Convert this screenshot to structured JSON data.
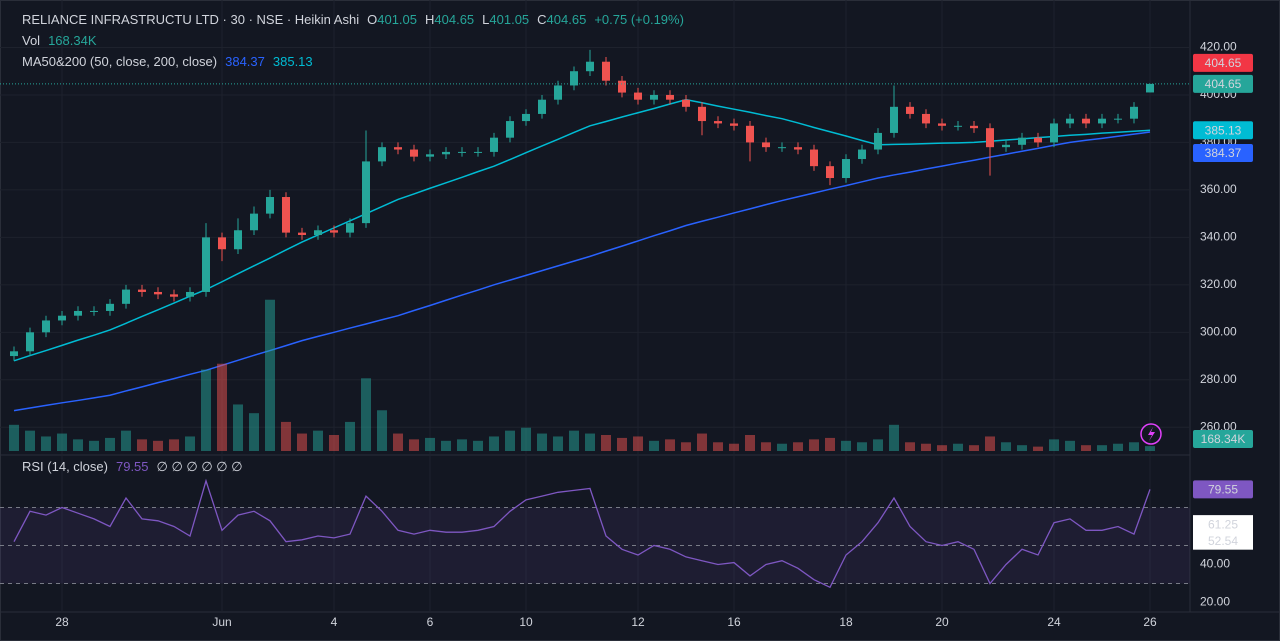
{
  "chart_data": [
    {
      "type": "candlestick",
      "title": "RELIANCE INFRASTRUCTU LTD · 30 · NSE · Heikin Ashi",
      "ohlc_letters": [
        "O",
        "H",
        "L",
        "C"
      ],
      "change": "+0.75 (+0.19%)",
      "indicator": "MA50&200 (50, close, 200, close)",
      "categories": [
        null,
        null,
        null,
        "28",
        null,
        null,
        null,
        null,
        null,
        null,
        null,
        null,
        null,
        "Jun",
        null,
        null,
        null,
        null,
        null,
        null,
        "4",
        null,
        null,
        null,
        null,
        null,
        "6",
        null,
        null,
        null,
        null,
        null,
        "10",
        null,
        null,
        null,
        null,
        null,
        null,
        "12",
        null,
        null,
        null,
        null,
        null,
        "16",
        null,
        null,
        null,
        null,
        null,
        null,
        "18",
        null,
        null,
        null,
        null,
        null,
        "20",
        null,
        null,
        null,
        null,
        null,
        null,
        "24",
        null,
        null,
        null,
        null,
        null,
        "26"
      ],
      "open": [
        290,
        292,
        300,
        305,
        307,
        309,
        309,
        312,
        318,
        317,
        316,
        315,
        317,
        340,
        335,
        343,
        350,
        357,
        342,
        341,
        343,
        342,
        346,
        372,
        378,
        377,
        374,
        375,
        376,
        376,
        376,
        382,
        389,
        392,
        398,
        404,
        410,
        414,
        406,
        401,
        398,
        400,
        398,
        395,
        389,
        388,
        387,
        380,
        378,
        378,
        377,
        370,
        365,
        373,
        377,
        384,
        395,
        392,
        388,
        387,
        387,
        386,
        378,
        379,
        382,
        380,
        388,
        390,
        388,
        390,
        390,
        401.05
      ],
      "high": [
        294,
        302,
        307,
        309,
        311,
        311,
        314,
        320,
        320,
        319,
        318,
        319,
        346,
        342,
        348,
        353,
        360,
        359,
        344,
        345,
        345,
        348,
        385,
        380,
        380,
        379,
        377,
        378,
        378,
        378,
        384,
        391,
        394,
        400,
        406,
        412,
        419,
        416,
        408,
        403,
        402,
        402,
        400,
        397,
        391,
        390,
        389,
        382,
        380,
        380,
        379,
        372,
        375,
        379,
        386,
        404,
        397,
        394,
        390,
        389,
        389,
        388,
        381,
        384,
        384,
        390,
        392,
        392,
        392,
        392,
        397,
        404.65
      ],
      "low": [
        288,
        290,
        298,
        303,
        305,
        307,
        307,
        310,
        315,
        314,
        313,
        313,
        315,
        330,
        333,
        341,
        348,
        340,
        339,
        339,
        340,
        340,
        344,
        370,
        375,
        372,
        372,
        373,
        374,
        374,
        374,
        380,
        387,
        390,
        396,
        402,
        408,
        404,
        399,
        396,
        396,
        396,
        393,
        383,
        386,
        385,
        372,
        376,
        376,
        375,
        368,
        362,
        363,
        371,
        375,
        382,
        390,
        386,
        385,
        385,
        384,
        366,
        376,
        377,
        378,
        378,
        386,
        386,
        386,
        388,
        388,
        401.05
      ],
      "close": [
        292,
        300,
        305,
        307,
        309,
        309,
        312,
        318,
        317,
        316,
        315,
        317,
        340,
        335,
        343,
        350,
        357,
        342,
        341,
        343,
        342,
        346,
        372,
        378,
        377,
        374,
        375,
        376,
        376,
        376,
        382,
        389,
        392,
        398,
        404,
        410,
        414,
        406,
        401,
        398,
        400,
        398,
        395,
        389,
        388,
        387,
        380,
        378,
        378,
        377,
        370,
        365,
        373,
        377,
        384,
        395,
        392,
        388,
        387,
        387,
        386,
        378,
        379,
        382,
        380,
        388,
        390,
        388,
        390,
        390,
        395,
        404.65
      ],
      "color_up": "#26a69a",
      "color_down": "#ef5350",
      "series": [
        {
          "color": "#2962ff",
          "values": [
            267,
            268.1,
            269.2,
            270.3,
            271.3,
            272.4,
            273.5,
            275.3,
            277,
            278.8,
            280.5,
            282.3,
            284,
            286.1,
            288.2,
            290.3,
            292.3,
            294.4,
            296.5,
            298.3,
            300,
            301.8,
            303.5,
            305.3,
            307,
            309.2,
            311.3,
            313.5,
            315.7,
            317.8,
            320,
            322,
            324,
            326,
            328,
            330,
            332,
            334.2,
            336.3,
            338.5,
            340.7,
            342.8,
            345,
            346.8,
            348.5,
            350.3,
            352,
            353.8,
            355.5,
            357.1,
            358.7,
            360.3,
            361.8,
            363.4,
            365,
            366.3,
            367.5,
            368.8,
            370,
            371.3,
            372.5,
            373.8,
            375,
            376.3,
            377.5,
            378.8,
            380,
            380.9,
            381.7,
            382.6,
            383.5,
            384.37
          ]
        },
        {
          "color": "#00bcd4",
          "values": [
            288,
            290.2,
            292.3,
            294.5,
            296.7,
            298.8,
            301,
            303.8,
            306.7,
            309.5,
            312.3,
            315.2,
            318,
            321.3,
            324.7,
            328,
            331.3,
            334.7,
            338,
            341,
            344,
            347,
            350,
            353,
            356,
            358.3,
            360.7,
            363,
            365.3,
            367.7,
            370,
            372.8,
            375.7,
            378.5,
            381.3,
            384.2,
            387,
            388.8,
            390.7,
            392.5,
            394.3,
            396.2,
            398,
            396.7,
            395.3,
            394,
            392.7,
            391.3,
            390,
            388.2,
            386.3,
            384.5,
            382.7,
            380.8,
            379,
            379.2,
            379.3,
            379.5,
            379.7,
            379.8,
            380,
            380.5,
            381,
            381.5,
            382,
            382.5,
            383,
            383.4,
            383.9,
            384.3,
            384.7,
            385.13
          ]
        }
      ],
      "ylim": [
        250,
        440
      ],
      "yticks": [
        {
          "value": 260,
          "label": "260.00"
        },
        {
          "value": 280,
          "label": "280.00"
        },
        {
          "value": 300,
          "label": "300.00"
        },
        {
          "value": 320,
          "label": "320.00"
        },
        {
          "value": 340,
          "label": "340.00"
        },
        {
          "value": 360,
          "label": "360.00"
        },
        {
          "value": 380,
          "label": "380.00"
        },
        {
          "value": 400,
          "label": "400.00"
        },
        {
          "value": 420,
          "label": "420.00"
        }
      ],
      "grid": true
    },
    {
      "type": "bar",
      "label": "Vol",
      "values": [
        900,
        700,
        500,
        600,
        400,
        350,
        450,
        700,
        400,
        350,
        400,
        500,
        2800,
        3000,
        1600,
        1300,
        5200,
        1000,
        600,
        700,
        550,
        1000,
        2500,
        1400,
        600,
        400,
        450,
        350,
        400,
        350,
        500,
        700,
        800,
        600,
        500,
        700,
        600,
        550,
        450,
        500,
        350,
        400,
        300,
        600,
        300,
        250,
        550,
        300,
        250,
        300,
        400,
        450,
        350,
        300,
        400,
        900,
        300,
        250,
        200,
        250,
        200,
        500,
        300,
        200,
        150,
        400,
        350,
        200,
        200,
        250,
        300,
        168.34
      ],
      "value_labels": [
        null,
        null,
        null,
        null,
        null,
        null,
        null,
        null,
        null,
        null,
        null,
        null,
        null,
        null,
        null,
        null,
        null,
        null,
        null,
        null,
        null,
        null,
        null,
        null,
        null,
        null,
        null,
        null,
        null,
        null,
        null,
        null,
        null,
        null,
        null,
        null,
        null,
        null,
        null,
        null,
        null,
        null,
        null,
        null,
        null,
        null,
        null,
        null,
        null,
        null,
        null,
        null,
        null,
        null,
        null,
        null,
        null,
        null,
        null,
        null,
        null,
        null,
        null,
        null,
        null,
        null,
        null,
        null,
        null,
        null,
        null,
        "168.34K"
      ],
      "ylim": [
        0,
        5500
      ]
    },
    {
      "type": "line",
      "title": "RSI (14, close)",
      "extra": "∅ ∅ ∅ ∅ ∅ ∅",
      "color": "#7e57c2",
      "values": [
        52,
        68,
        66,
        70,
        67,
        64,
        60,
        75,
        64,
        63,
        60,
        55,
        84,
        58,
        66,
        68,
        63,
        52,
        53,
        55,
        54,
        56,
        76,
        68,
        58,
        56,
        58,
        57,
        57,
        58,
        60,
        68,
        74,
        76,
        78,
        79,
        80,
        55,
        48,
        45,
        50,
        48,
        44,
        42,
        40,
        41,
        34,
        40,
        42,
        38,
        32,
        28,
        45,
        52,
        62,
        75,
        60,
        52,
        50,
        52,
        48,
        30,
        40,
        48,
        45,
        62,
        64,
        58,
        58,
        60,
        56,
        79.55
      ],
      "levels": [
        61.25,
        52.54
      ],
      "bands": [
        70,
        50,
        30
      ],
      "ylim": [
        15,
        95
      ],
      "yticks": [
        {
          "value": 20,
          "label": "20.00"
        },
        {
          "value": 40,
          "label": "40.00"
        }
      ]
    }
  ]
}
